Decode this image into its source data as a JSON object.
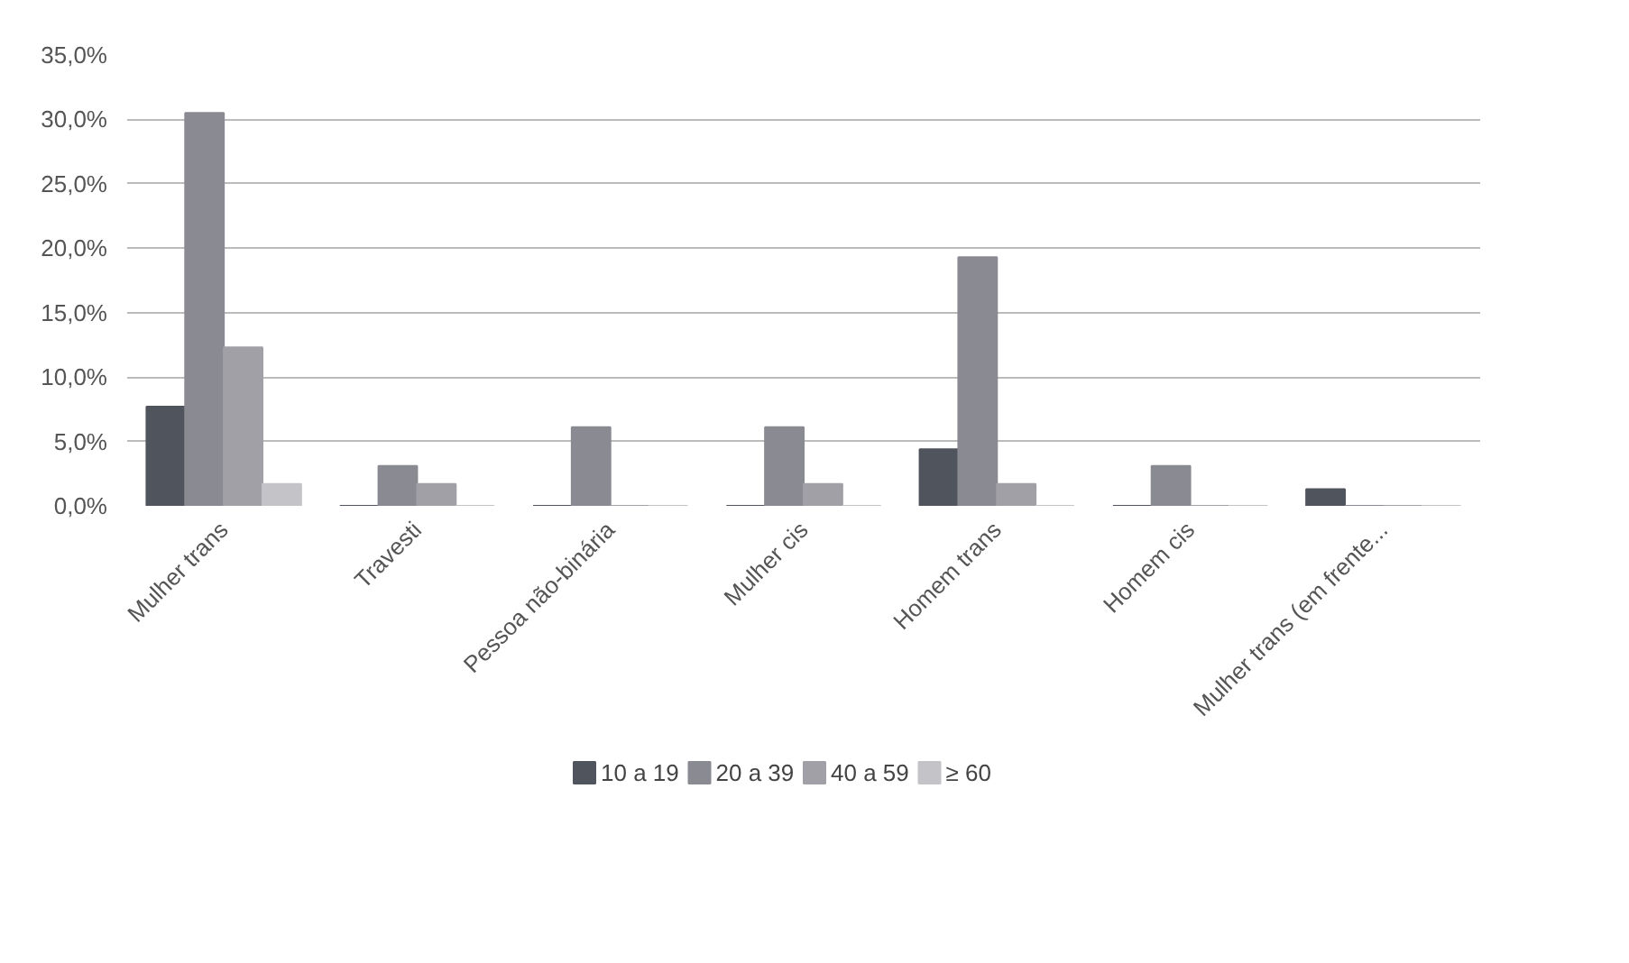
{
  "chart_data": {
    "type": "bar",
    "categories": [
      "Mulher trans",
      "Travesti",
      "Pessoa não-binária",
      "Mulher cis",
      "Homem trans",
      "Homem cis",
      "Mulher trans (em frente..."
    ],
    "series": [
      {
        "name": "10 a 19",
        "color": "#50545c",
        "values": [
          7.7,
          0,
          0,
          0,
          4.4,
          0,
          1.3
        ]
      },
      {
        "name": "20 a 39",
        "color": "#8a8a92",
        "values": [
          30.5,
          3.1,
          6.1,
          6.1,
          19.3,
          3.1,
          0
        ]
      },
      {
        "name": "40 a 59",
        "color": "#a0a0a6",
        "values": [
          12.3,
          1.7,
          0,
          1.7,
          1.7,
          0,
          0
        ]
      },
      {
        "name": "≥ 60",
        "color": "#c4c4c8",
        "values": [
          1.7,
          0,
          0,
          0,
          0,
          0,
          0
        ]
      }
    ],
    "ylim": [
      0,
      35
    ],
    "yticks": [
      {
        "value": 0,
        "label": "0,0%"
      },
      {
        "value": 5,
        "label": "5,0%"
      },
      {
        "value": 10,
        "label": "10,0%"
      },
      {
        "value": 15,
        "label": "15,0%"
      },
      {
        "value": 20,
        "label": "20,0%"
      },
      {
        "value": 25,
        "label": "25,0%"
      },
      {
        "value": 30,
        "label": "30,0%"
      },
      {
        "value": 35,
        "label": "35,0%"
      }
    ],
    "grid": "y",
    "legend": "bottom"
  }
}
